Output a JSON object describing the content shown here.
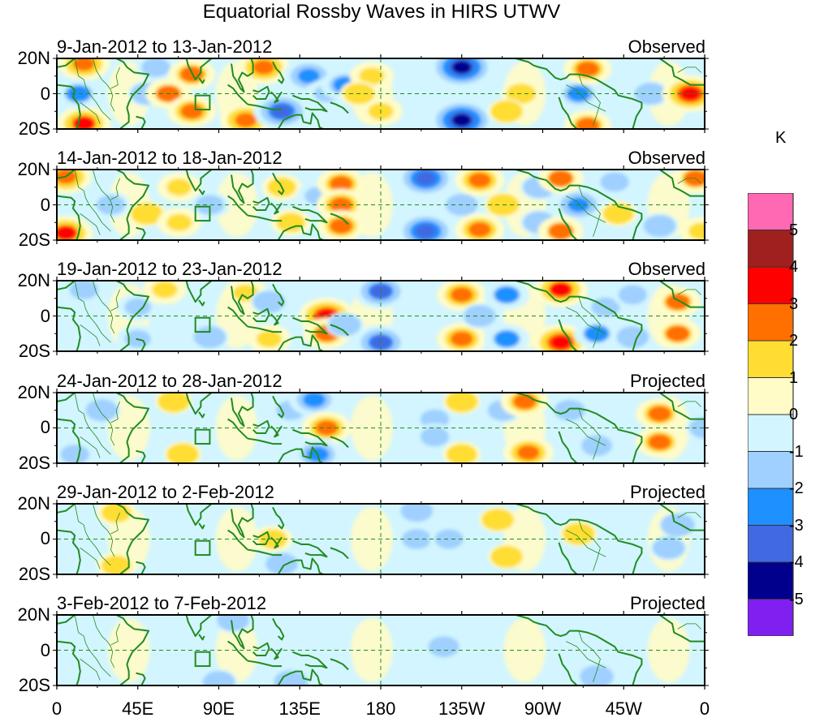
{
  "chart_data": {
    "type": "heatmap",
    "title": "Equatorial Rossby Waves in HIRS UTWV",
    "xlabel": "",
    "ylabel": "",
    "x_ticks": [
      "0",
      "45E",
      "90E",
      "135E",
      "180",
      "135W",
      "90W",
      "45W",
      "0"
    ],
    "y_ticks": [
      "20N",
      "0",
      "20S"
    ],
    "lon_range": [
      0,
      360
    ],
    "lat_range": [
      -20,
      20
    ],
    "colorbar": {
      "unit": "K",
      "levels": [
        -5,
        -4,
        -3,
        -2,
        -1,
        0,
        1,
        2,
        3,
        4,
        5
      ],
      "level_labels": [
        "5",
        "4",
        "3",
        "2",
        "1",
        "0",
        "-1",
        "-2",
        "-3",
        "-4",
        "-5"
      ],
      "colors": [
        "#8020f0",
        "#00008c",
        "#4169e1",
        "#1e90ff",
        "#9fd0ff",
        "#d2f5ff",
        "#fffcc8",
        "#ffdd33",
        "#ff7000",
        "#ff0000",
        "#a02020",
        "#ff69b4"
      ]
    },
    "panels": [
      {
        "title": "9-Jan-2012 to 13-Jan-2012",
        "status": "Observed",
        "anomalies": [
          [
            15,
            17,
            3
          ],
          [
            15,
            -17,
            3.2
          ],
          [
            12,
            0,
            -2.3
          ],
          [
            55,
            15,
            -1.5
          ],
          [
            50,
            0,
            -1.2
          ],
          [
            75,
            11,
            2.4
          ],
          [
            62,
            0,
            2.2
          ],
          [
            75,
            -10,
            2.6
          ],
          [
            115,
            15,
            3
          ],
          [
            105,
            -15,
            3
          ],
          [
            140,
            10,
            -3
          ],
          [
            125,
            -10,
            -3.5
          ],
          [
            150,
            0,
            -2
          ],
          [
            160,
            5,
            -2.5
          ],
          [
            175,
            10,
            2
          ],
          [
            180,
            -10,
            2
          ],
          [
            168,
            0,
            1.3
          ],
          [
            225,
            15,
            -4.5
          ],
          [
            225,
            -15,
            -4.5
          ],
          [
            258,
            0,
            1.4
          ],
          [
            290,
            0,
            -2.5
          ],
          [
            295,
            14,
            2.5
          ],
          [
            295,
            -18,
            2.4
          ],
          [
            330,
            0,
            -1.2
          ],
          [
            352,
            0,
            3.5
          ],
          [
            250,
            -10,
            1.2
          ]
        ]
      },
      {
        "title": "14-Jan-2012 to 18-Jan-2012",
        "status": "Observed",
        "anomalies": [
          [
            5,
            16,
            3
          ],
          [
            5,
            -16,
            3.2
          ],
          [
            30,
            0,
            -1.5
          ],
          [
            50,
            -5,
            1.2
          ],
          [
            68,
            10,
            2
          ],
          [
            68,
            -10,
            2
          ],
          [
            85,
            0,
            -1.5
          ],
          [
            125,
            10,
            1.5
          ],
          [
            130,
            -10,
            1.5
          ],
          [
            145,
            5,
            -1.8
          ],
          [
            158,
            12,
            2.5
          ],
          [
            158,
            0,
            2.6
          ],
          [
            158,
            -12,
            2.5
          ],
          [
            205,
            15,
            -3.8
          ],
          [
            205,
            -15,
            -3.8
          ],
          [
            225,
            0,
            -1.2
          ],
          [
            235,
            14,
            2.7
          ],
          [
            235,
            -14,
            2.7
          ],
          [
            248,
            0,
            1.2
          ],
          [
            268,
            10,
            -1.2
          ],
          [
            268,
            -10,
            -1.2
          ],
          [
            290,
            0,
            -3
          ],
          [
            280,
            15,
            2.2
          ],
          [
            280,
            -15,
            2.2
          ],
          [
            310,
            13,
            -1.5
          ],
          [
            312,
            -5,
            1.3
          ],
          [
            335,
            -12,
            -1.2
          ],
          [
            355,
            15,
            2.3
          ],
          [
            358,
            -15,
            2
          ]
        ]
      },
      {
        "title": "19-Jan-2012 to 23-Jan-2012",
        "status": "Observed",
        "anomalies": [
          [
            15,
            15,
            -1.5
          ],
          [
            45,
            5,
            -1.8
          ],
          [
            45,
            -13,
            -1.8
          ],
          [
            60,
            15,
            2
          ],
          [
            85,
            -12,
            -1.2
          ],
          [
            105,
            13,
            2
          ],
          [
            118,
            8,
            -1.2
          ],
          [
            118,
            -13,
            2
          ],
          [
            150,
            0,
            3.5
          ],
          [
            150,
            -10,
            2.4
          ],
          [
            180,
            14,
            -3.3
          ],
          [
            180,
            -15,
            -3.3
          ],
          [
            160,
            -5,
            -1.2
          ],
          [
            225,
            12,
            2.7
          ],
          [
            225,
            -13,
            2.7
          ],
          [
            235,
            0,
            -1.2
          ],
          [
            250,
            12,
            -2.2
          ],
          [
            250,
            -13,
            -2.2
          ],
          [
            280,
            15,
            3.2
          ],
          [
            280,
            -15,
            3.5
          ],
          [
            305,
            5,
            -1.5
          ],
          [
            300,
            -10,
            -2.2
          ],
          [
            320,
            12,
            -1.5
          ],
          [
            320,
            -12,
            -1.2
          ],
          [
            345,
            8,
            2.3
          ],
          [
            345,
            -10,
            2.3
          ]
        ]
      },
      {
        "title": "24-Jan-2012 to 28-Jan-2012",
        "status": "Projected",
        "anomalies": [
          [
            10,
            -15,
            -1.5
          ],
          [
            25,
            10,
            -1.2
          ],
          [
            65,
            15,
            1.2
          ],
          [
            70,
            -15,
            1.2
          ],
          [
            130,
            10,
            -1.5
          ],
          [
            143,
            16,
            -2.8
          ],
          [
            150,
            0,
            2.7
          ],
          [
            145,
            -15,
            -2.8
          ],
          [
            210,
            5,
            -1.5
          ],
          [
            210,
            -5,
            -1.5
          ],
          [
            225,
            15,
            1.2
          ],
          [
            225,
            -15,
            1.3
          ],
          [
            248,
            10,
            -1.3
          ],
          [
            260,
            15,
            2.5
          ],
          [
            262,
            -14,
            2.8
          ],
          [
            285,
            10,
            -1.3
          ],
          [
            300,
            -10,
            -1.3
          ],
          [
            335,
            8,
            2.5
          ],
          [
            335,
            -8,
            2.5
          ],
          [
            360,
            0,
            -1.3
          ]
        ]
      },
      {
        "title": "29-Jan-2012 to 2-Feb-2012",
        "status": "Projected",
        "anomalies": [
          [
            33,
            15,
            1.4
          ],
          [
            33,
            -15,
            1.4
          ],
          [
            120,
            0,
            1.5
          ],
          [
            125,
            -14,
            -1.2
          ],
          [
            200,
            16,
            -1.2
          ],
          [
            200,
            0,
            -1.4
          ],
          [
            218,
            0,
            -1.5
          ],
          [
            245,
            11,
            1.2
          ],
          [
            250,
            -10,
            1.2
          ],
          [
            290,
            3,
            1.2
          ],
          [
            340,
            -5,
            -1.2
          ],
          [
            345,
            8,
            -1.1
          ]
        ]
      },
      {
        "title": "3-Feb-2012 to 7-Feb-2012",
        "status": "Projected",
        "anomalies": [
          [
            98,
            17,
            -1.2
          ],
          [
            215,
            2,
            -1.3
          ],
          [
            90,
            -18,
            -1.2
          ],
          [
            130,
            -18,
            -1.1
          ],
          [
            300,
            -15,
            -1.1
          ]
        ]
      }
    ],
    "grid": false,
    "legend": "right"
  }
}
